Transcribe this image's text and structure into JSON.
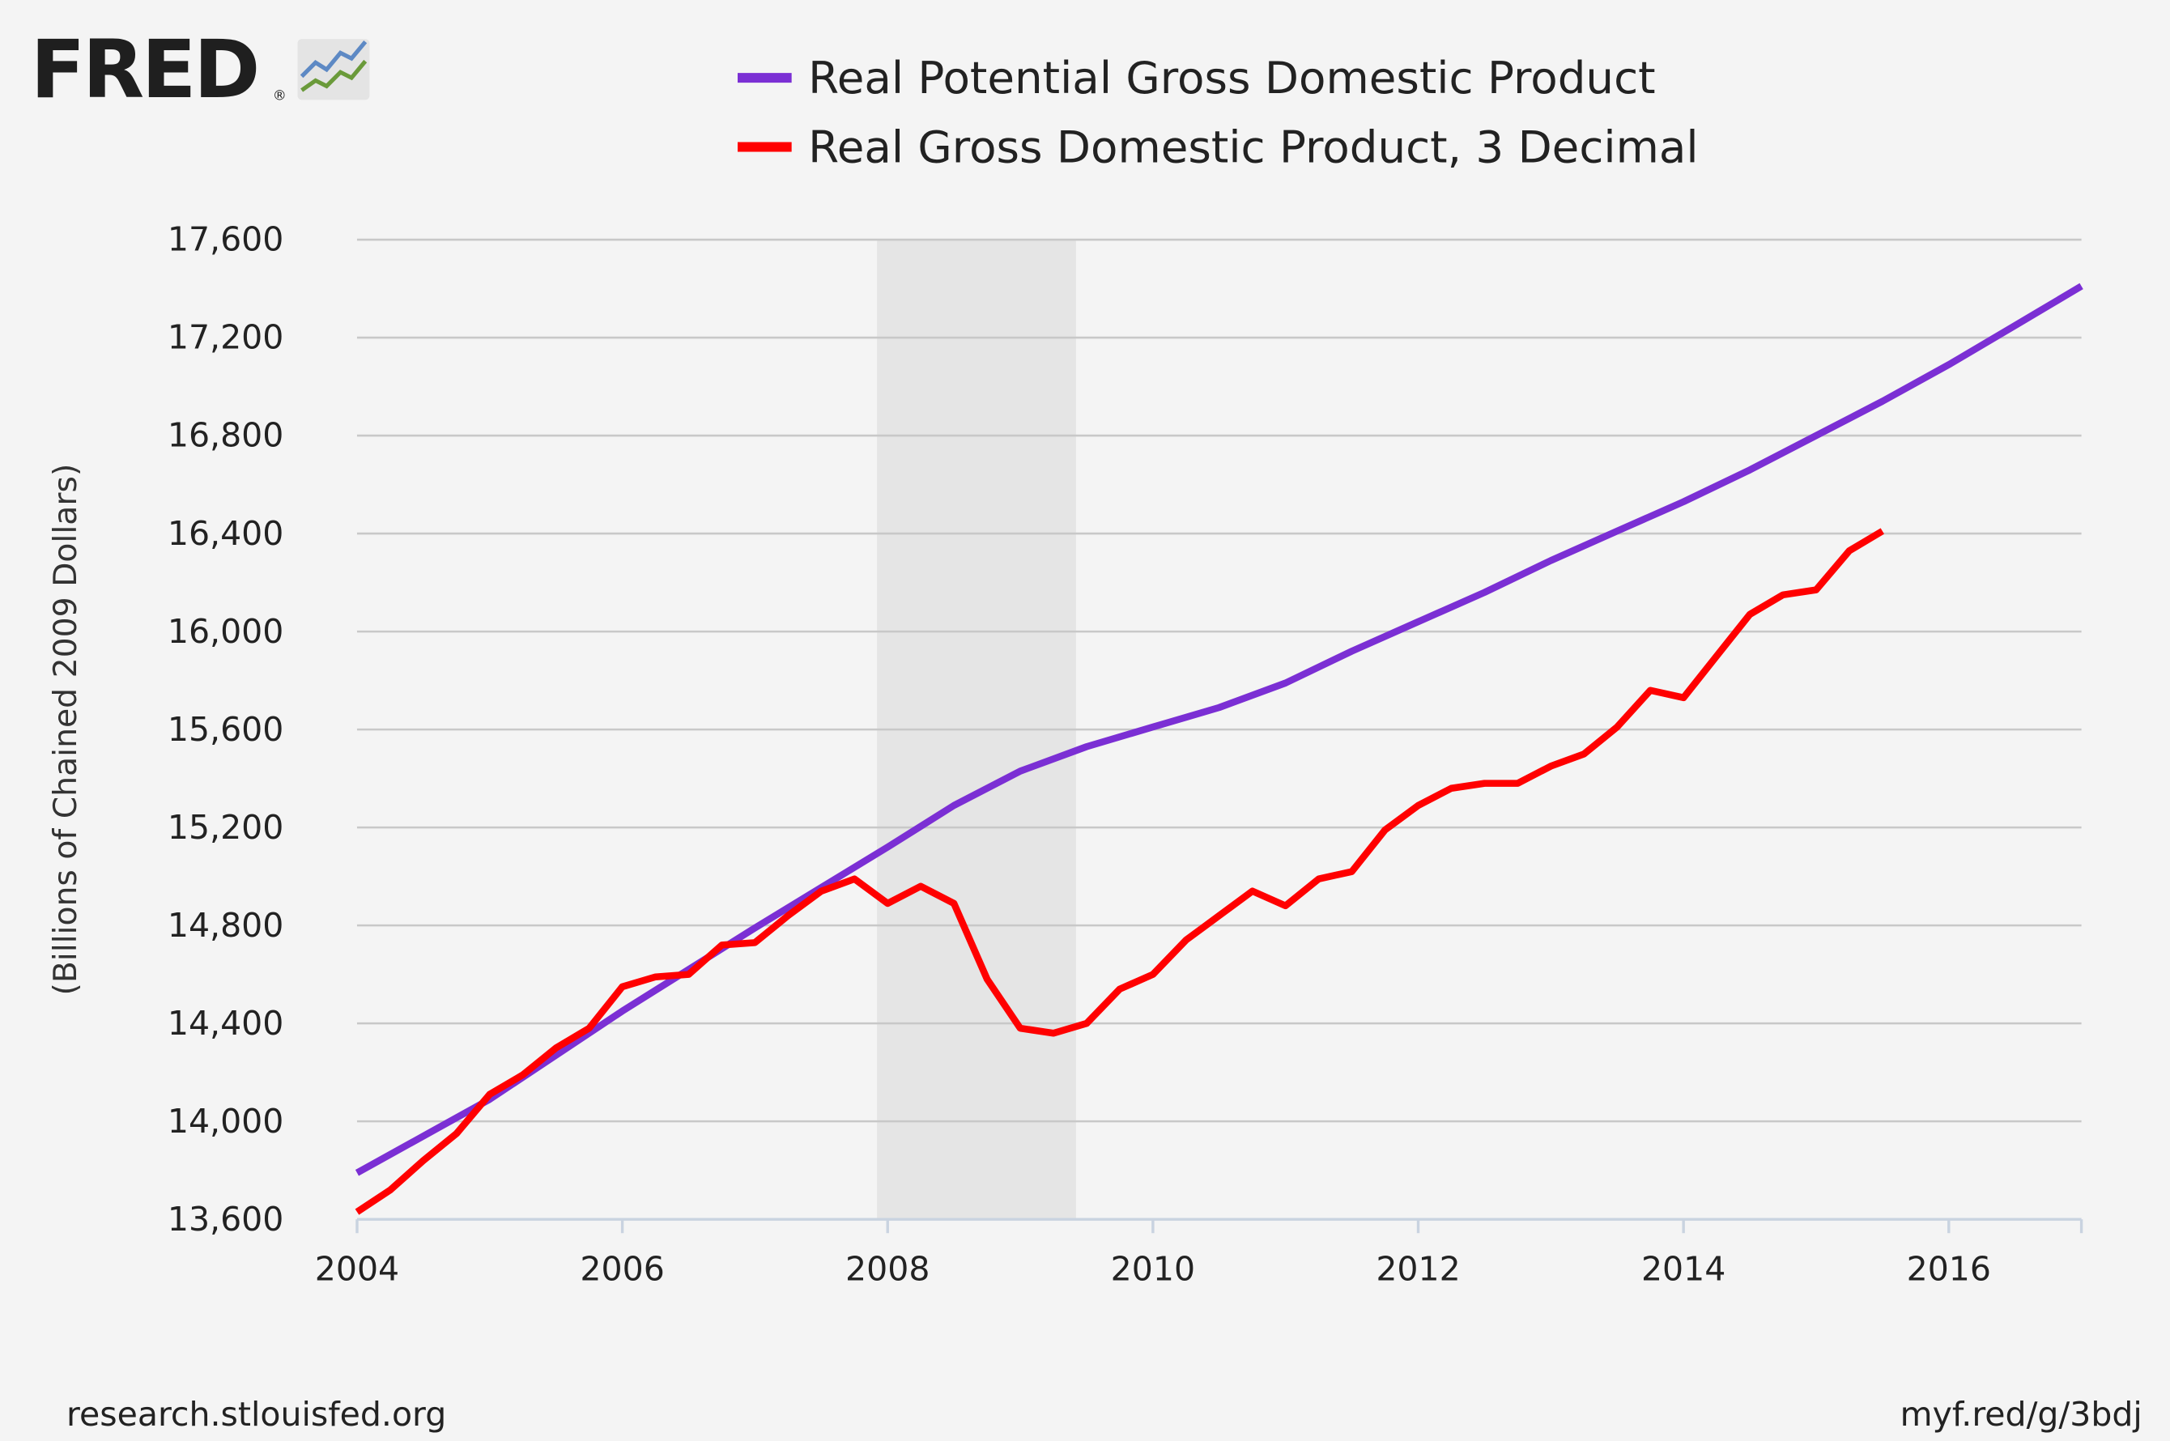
{
  "logo": {
    "text": "FRED",
    "registered": "®",
    "icon": "line-chart-icon"
  },
  "footer": {
    "left": "research.stlouisfed.org",
    "right": "myf.red/g/3bdj"
  },
  "colors": {
    "background": "#f4f4f4",
    "grid": "#c8c8c8",
    "recession": "#e5e5e5",
    "potential": "#7b2fd4",
    "actual": "#ff0000"
  },
  "chart_data": {
    "type": "line",
    "title": "",
    "xlabel": "",
    "ylabel": "(Billions of Chained 2009 Dollars)",
    "xlim": [
      2004,
      2017
    ],
    "ylim": [
      13600,
      17600
    ],
    "x_ticks": [
      2004,
      2006,
      2008,
      2010,
      2012,
      2014,
      2016
    ],
    "x_tick_labels": [
      "2004",
      "2006",
      "2008",
      "2010",
      "2012",
      "2014",
      "2016"
    ],
    "y_ticks": [
      13600,
      14000,
      14400,
      14800,
      15200,
      15600,
      16000,
      16400,
      16800,
      17200,
      17600
    ],
    "y_tick_labels": [
      "13,600",
      "14,000",
      "14,400",
      "14,800",
      "15,200",
      "15,600",
      "16,000",
      "16,400",
      "16,800",
      "17,200",
      "17,600"
    ],
    "grid": true,
    "legend_position": "top-center",
    "recession_shading": [
      {
        "start": 2007.92,
        "end": 2009.42
      }
    ],
    "series": [
      {
        "name": "Real Potential Gross Domestic Product",
        "color": "#7b2fd4",
        "points": [
          [
            2004.0,
            13790
          ],
          [
            2005.0,
            14090
          ],
          [
            2006.0,
            14450
          ],
          [
            2007.0,
            14790
          ],
          [
            2008.0,
            15120
          ],
          [
            2008.5,
            15290
          ],
          [
            2009.0,
            15430
          ],
          [
            2009.5,
            15530
          ],
          [
            2010.0,
            15610
          ],
          [
            2010.5,
            15690
          ],
          [
            2011.0,
            15790
          ],
          [
            2011.5,
            15920
          ],
          [
            2012.0,
            16040
          ],
          [
            2012.5,
            16160
          ],
          [
            2013.0,
            16290
          ],
          [
            2013.5,
            16410
          ],
          [
            2014.0,
            16530
          ],
          [
            2014.5,
            16660
          ],
          [
            2015.0,
            16800
          ],
          [
            2015.5,
            16940
          ],
          [
            2016.0,
            17090
          ],
          [
            2016.5,
            17250
          ],
          [
            2017.0,
            17410
          ]
        ]
      },
      {
        "name": "Real Gross Domestic Product, 3 Decimal",
        "color": "#ff0000",
        "points": [
          [
            2004.0,
            13630
          ],
          [
            2004.25,
            13720
          ],
          [
            2004.5,
            13840
          ],
          [
            2004.75,
            13950
          ],
          [
            2005.0,
            14110
          ],
          [
            2005.25,
            14190
          ],
          [
            2005.5,
            14300
          ],
          [
            2005.75,
            14380
          ],
          [
            2006.0,
            14550
          ],
          [
            2006.25,
            14590
          ],
          [
            2006.5,
            14600
          ],
          [
            2006.75,
            14720
          ],
          [
            2007.0,
            14730
          ],
          [
            2007.25,
            14840
          ],
          [
            2007.5,
            14940
          ],
          [
            2007.75,
            14990
          ],
          [
            2008.0,
            14890
          ],
          [
            2008.25,
            14960
          ],
          [
            2008.5,
            14890
          ],
          [
            2008.75,
            14580
          ],
          [
            2009.0,
            14380
          ],
          [
            2009.25,
            14360
          ],
          [
            2009.5,
            14400
          ],
          [
            2009.75,
            14540
          ],
          [
            2010.0,
            14600
          ],
          [
            2010.25,
            14740
          ],
          [
            2010.5,
            14840
          ],
          [
            2010.75,
            14940
          ],
          [
            2011.0,
            14880
          ],
          [
            2011.25,
            14990
          ],
          [
            2011.5,
            15020
          ],
          [
            2011.75,
            15190
          ],
          [
            2012.0,
            15290
          ],
          [
            2012.25,
            15360
          ],
          [
            2012.5,
            15380
          ],
          [
            2012.75,
            15380
          ],
          [
            2013.0,
            15450
          ],
          [
            2013.25,
            15500
          ],
          [
            2013.5,
            15610
          ],
          [
            2013.75,
            15760
          ],
          [
            2014.0,
            15730
          ],
          [
            2014.25,
            15900
          ],
          [
            2014.5,
            16070
          ],
          [
            2014.75,
            16150
          ],
          [
            2015.0,
            16170
          ],
          [
            2015.25,
            16330
          ],
          [
            2015.5,
            16410
          ]
        ]
      }
    ]
  }
}
